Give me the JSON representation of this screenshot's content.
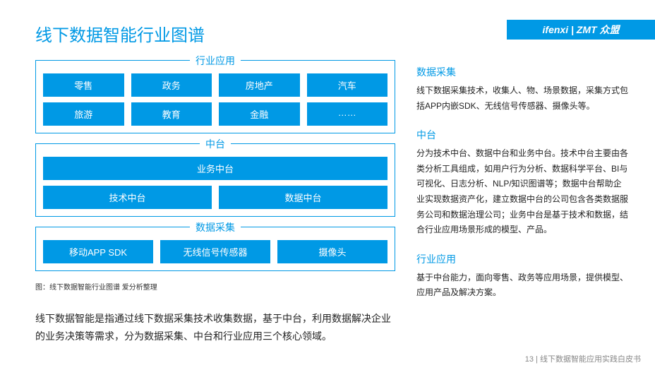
{
  "title": "线下数据智能行业图谱",
  "logo_text": "ifenxi | ZMT 众盟",
  "colors": {
    "primary": "#0099e5",
    "text": "#222222",
    "bg": "#ffffff"
  },
  "diagram": {
    "groups": [
      {
        "label": "行业应用",
        "rows": [
          [
            "零售",
            "政务",
            "房地产",
            "汽车"
          ],
          [
            "旅游",
            "教育",
            "金融",
            "……"
          ]
        ]
      },
      {
        "label": "中台",
        "rows": [
          [
            "业务中台"
          ],
          [
            "技术中台",
            "数据中台"
          ]
        ]
      },
      {
        "label": "数据采集",
        "rows": [
          [
            "移动APP SDK",
            "无线信号传感器",
            "摄像头"
          ]
        ]
      }
    ],
    "caption": "图：线下数据智能行业图谱  爱分析整理"
  },
  "summary": "线下数据智能是指通过线下数据采集技术收集数据，基于中台，利用数据解决企业的业务决策等需求，分为数据采集、中台和行业应用三个核心领域。",
  "sections": [
    {
      "title": "数据采集",
      "body": "线下数据采集技术，收集人、物、场景数据，采集方式包括APP内嵌SDK、无线信号传感器、摄像头等。"
    },
    {
      "title": "中台",
      "body": "分为技术中台、数据中台和业务中台。技术中台主要由各类分析工具组成，如用户行为分析、数据科学平台、BI与可视化、日志分析、NLP/知识图谱等；数据中台帮助企业实现数据资产化，建立数据中台的公司包含各类数据服务公司和数据治理公司；业务中台是基于技术和数据，结合行业应用场景形成的模型、产品。"
    },
    {
      "title": "行业应用",
      "body": "基于中台能力，面向零售、政务等应用场景，提供模型、应用产品及解决方案。"
    }
  ],
  "footer": "13 | 线下数据智能应用实践白皮书"
}
